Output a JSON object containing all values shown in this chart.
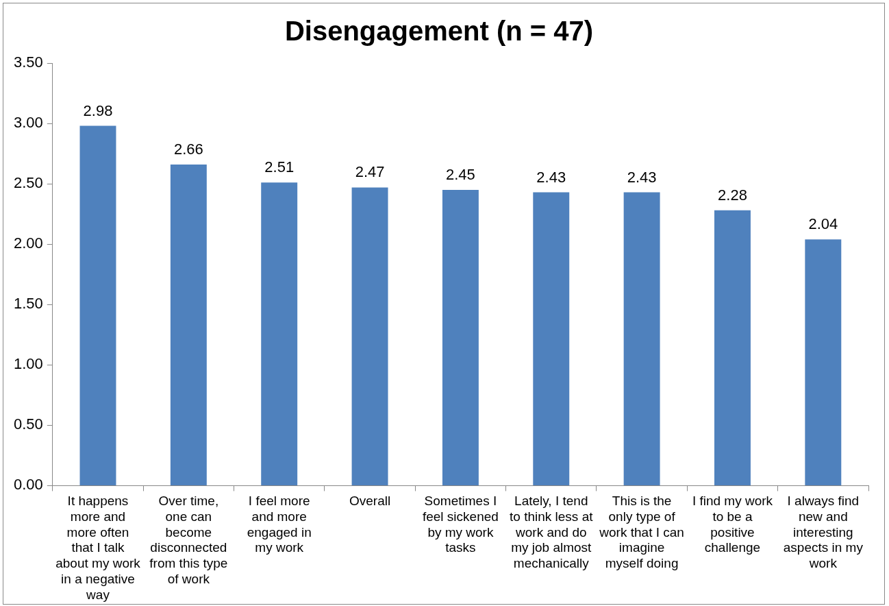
{
  "chart_data": {
    "type": "bar",
    "title": "Disengagement (n = 47)",
    "categories": [
      "It happens more and more often that I talk about my work in a negative way",
      "Over time, one can become disconnected from this type of work",
      "I feel more and more engaged in my work",
      "Overall",
      "Sometimes I feel sickened by my work tasks",
      "Lately, I tend to think less at work and do my job almost mechanically",
      "This is the only type of work that I can imagine myself doing",
      "I find my work to be a positive challenge",
      "I always find new and interesting aspects in my work"
    ],
    "values": [
      2.98,
      2.66,
      2.51,
      2.47,
      2.45,
      2.43,
      2.43,
      2.28,
      2.04
    ],
    "color": "#4f81bd",
    "ylim": [
      0,
      3.5
    ],
    "yticks": [
      {
        "value": 0,
        "label": "0.00"
      },
      {
        "value": 0.5,
        "label": "0.50"
      },
      {
        "value": 1,
        "label": "1.00"
      },
      {
        "value": 1.5,
        "label": "1.50"
      },
      {
        "value": 2,
        "label": "2.00"
      },
      {
        "value": 2.5,
        "label": "2.50"
      },
      {
        "value": 3,
        "label": "3.00"
      },
      {
        "value": 3.5,
        "label": "3.50"
      }
    ],
    "data_labels": true,
    "grid": false,
    "legend": false
  }
}
